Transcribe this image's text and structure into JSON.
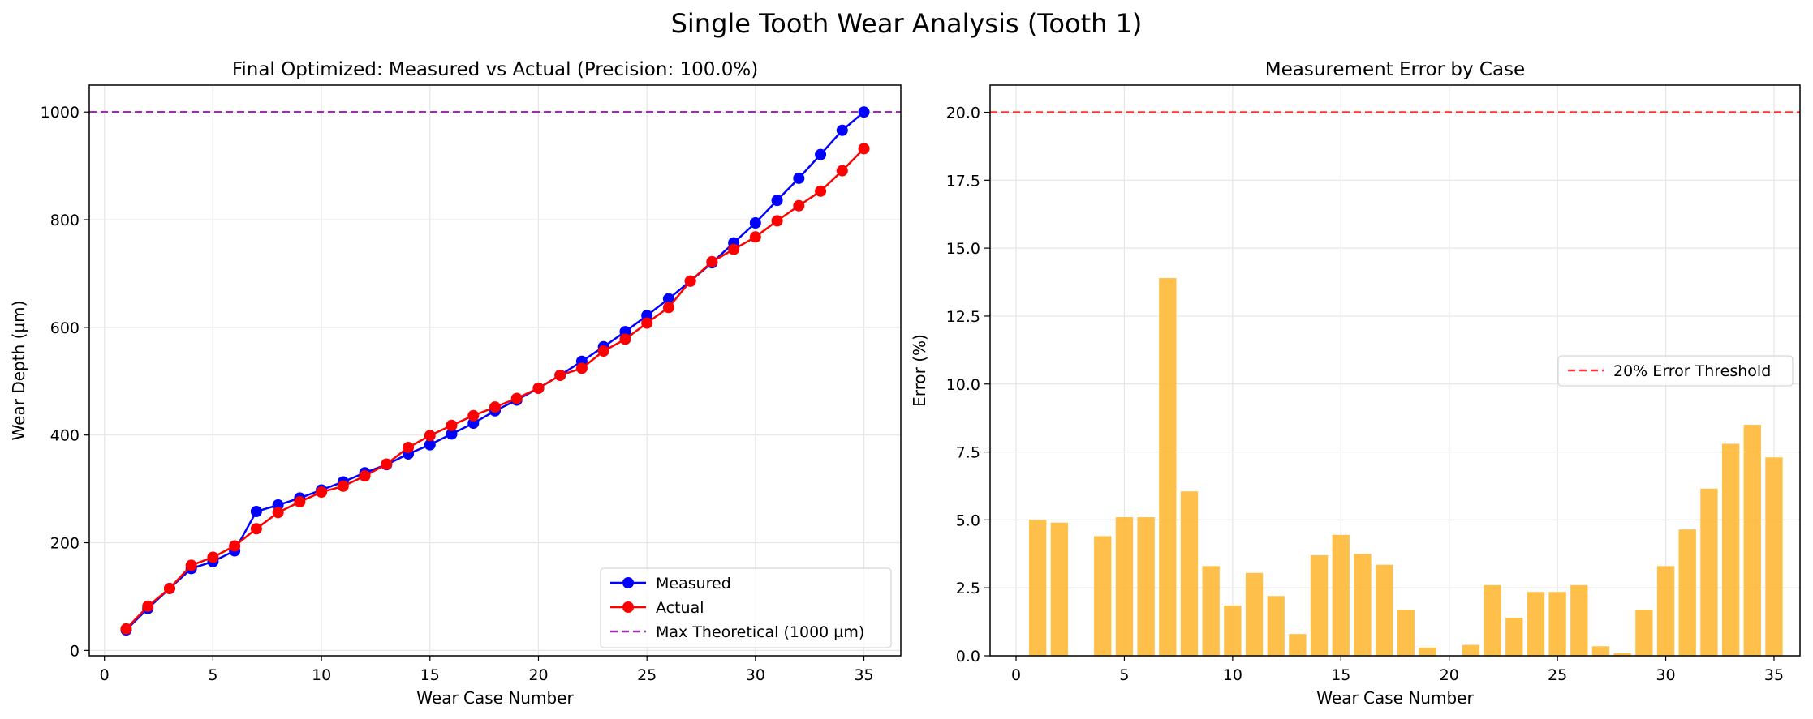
{
  "figure": {
    "suptitle": "Single Tooth Wear Analysis (Tooth 1)"
  },
  "chart_data": [
    {
      "type": "line",
      "title": "Final Optimized: Measured vs Actual (Precision: 100.0%)",
      "xlabel": "Wear Case Number",
      "ylabel": "Wear Depth (µm)",
      "xlim": [
        -0.7,
        36.7
      ],
      "ylim": [
        -10,
        1050
      ],
      "xticks": [
        0,
        5,
        10,
        15,
        20,
        25,
        30,
        35
      ],
      "yticks": [
        0,
        200,
        400,
        600,
        800,
        1000
      ],
      "grid": true,
      "legend_position": "lower-right",
      "x": [
        1,
        2,
        3,
        4,
        5,
        6,
        7,
        8,
        9,
        10,
        11,
        12,
        13,
        14,
        15,
        16,
        17,
        18,
        19,
        20,
        21,
        22,
        23,
        24,
        25,
        26,
        27,
        28,
        29,
        30,
        31,
        32,
        33,
        34,
        35
      ],
      "series": [
        {
          "name": "Measured",
          "color": "#0000ff",
          "marker": "circle",
          "values": [
            38,
            78,
            115,
            152,
            165,
            185,
            258,
            270,
            283,
            298,
            313,
            330,
            345,
            365,
            382,
            402,
            422,
            445,
            465,
            487,
            511,
            537,
            564,
            592,
            622,
            653,
            686,
            720,
            757,
            794,
            836,
            877,
            921,
            966,
            1000
          ]
        },
        {
          "name": "Actual",
          "color": "#ff0000",
          "marker": "circle",
          "values": [
            40,
            82,
            115,
            158,
            173,
            194,
            226,
            256,
            276,
            294,
            305,
            324,
            346,
            377,
            399,
            418,
            436,
            452,
            468,
            487,
            511,
            524,
            556,
            578,
            608,
            637,
            686,
            722,
            745,
            768,
            798,
            826,
            853,
            891,
            932
          ]
        }
      ],
      "reference_lines": [
        {
          "name": "Max Theoretical (1000 µm)",
          "y": 1000,
          "color": "#9b2fb0",
          "style": "dashed"
        }
      ]
    },
    {
      "type": "bar",
      "title": "Measurement Error by Case",
      "xlabel": "Wear Case Number",
      "ylabel": "Error (%)",
      "xlim": [
        -1.2,
        36.2
      ],
      "ylim": [
        0,
        21
      ],
      "xticks": [
        0,
        5,
        10,
        15,
        20,
        25,
        30,
        35
      ],
      "yticks": [
        "0.0",
        "2.5",
        "5.0",
        "7.5",
        "10.0",
        "12.5",
        "15.0",
        "17.5",
        "20.0"
      ],
      "grid": true,
      "legend_position": "center-right",
      "bar_color": "#ffb732",
      "x": [
        0,
        1,
        2,
        3,
        4,
        5,
        6,
        7,
        8,
        9,
        10,
        11,
        12,
        13,
        14,
        15,
        16,
        17,
        18,
        19,
        20,
        21,
        22,
        23,
        24,
        25,
        26,
        27,
        28,
        29,
        30,
        31,
        32,
        33,
        34,
        35
      ],
      "values": [
        0,
        5.0,
        4.9,
        0,
        4.4,
        5.1,
        5.1,
        13.9,
        6.05,
        3.3,
        1.85,
        3.05,
        2.2,
        0.8,
        3.7,
        4.45,
        3.75,
        3.35,
        1.7,
        0.3,
        0,
        0.4,
        2.6,
        1.4,
        2.35,
        2.35,
        2.6,
        0.35,
        0.1,
        1.7,
        3.3,
        4.65,
        6.15,
        7.8,
        8.5,
        7.3
      ],
      "reference_lines": [
        {
          "name": "20% Error Threshold",
          "y": 20,
          "color": "#ff3333",
          "style": "dashed"
        }
      ]
    }
  ]
}
